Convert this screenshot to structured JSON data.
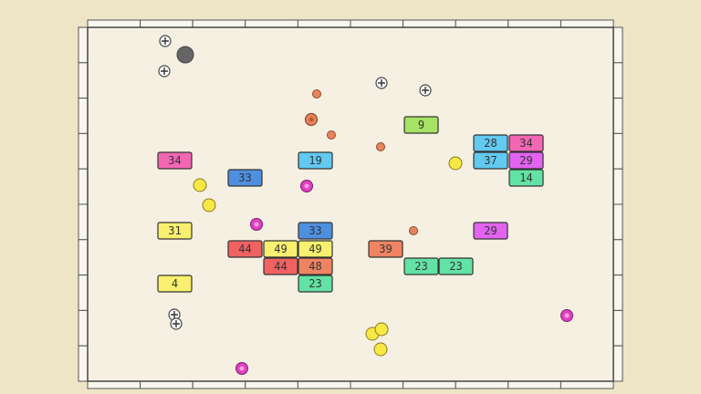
{
  "bricks": [
    9,
    28,
    34,
    34,
    19,
    37,
    29,
    33,
    14,
    31,
    33,
    29,
    44,
    49,
    49,
    39,
    44,
    48,
    23,
    23,
    4,
    23
  ]
}
